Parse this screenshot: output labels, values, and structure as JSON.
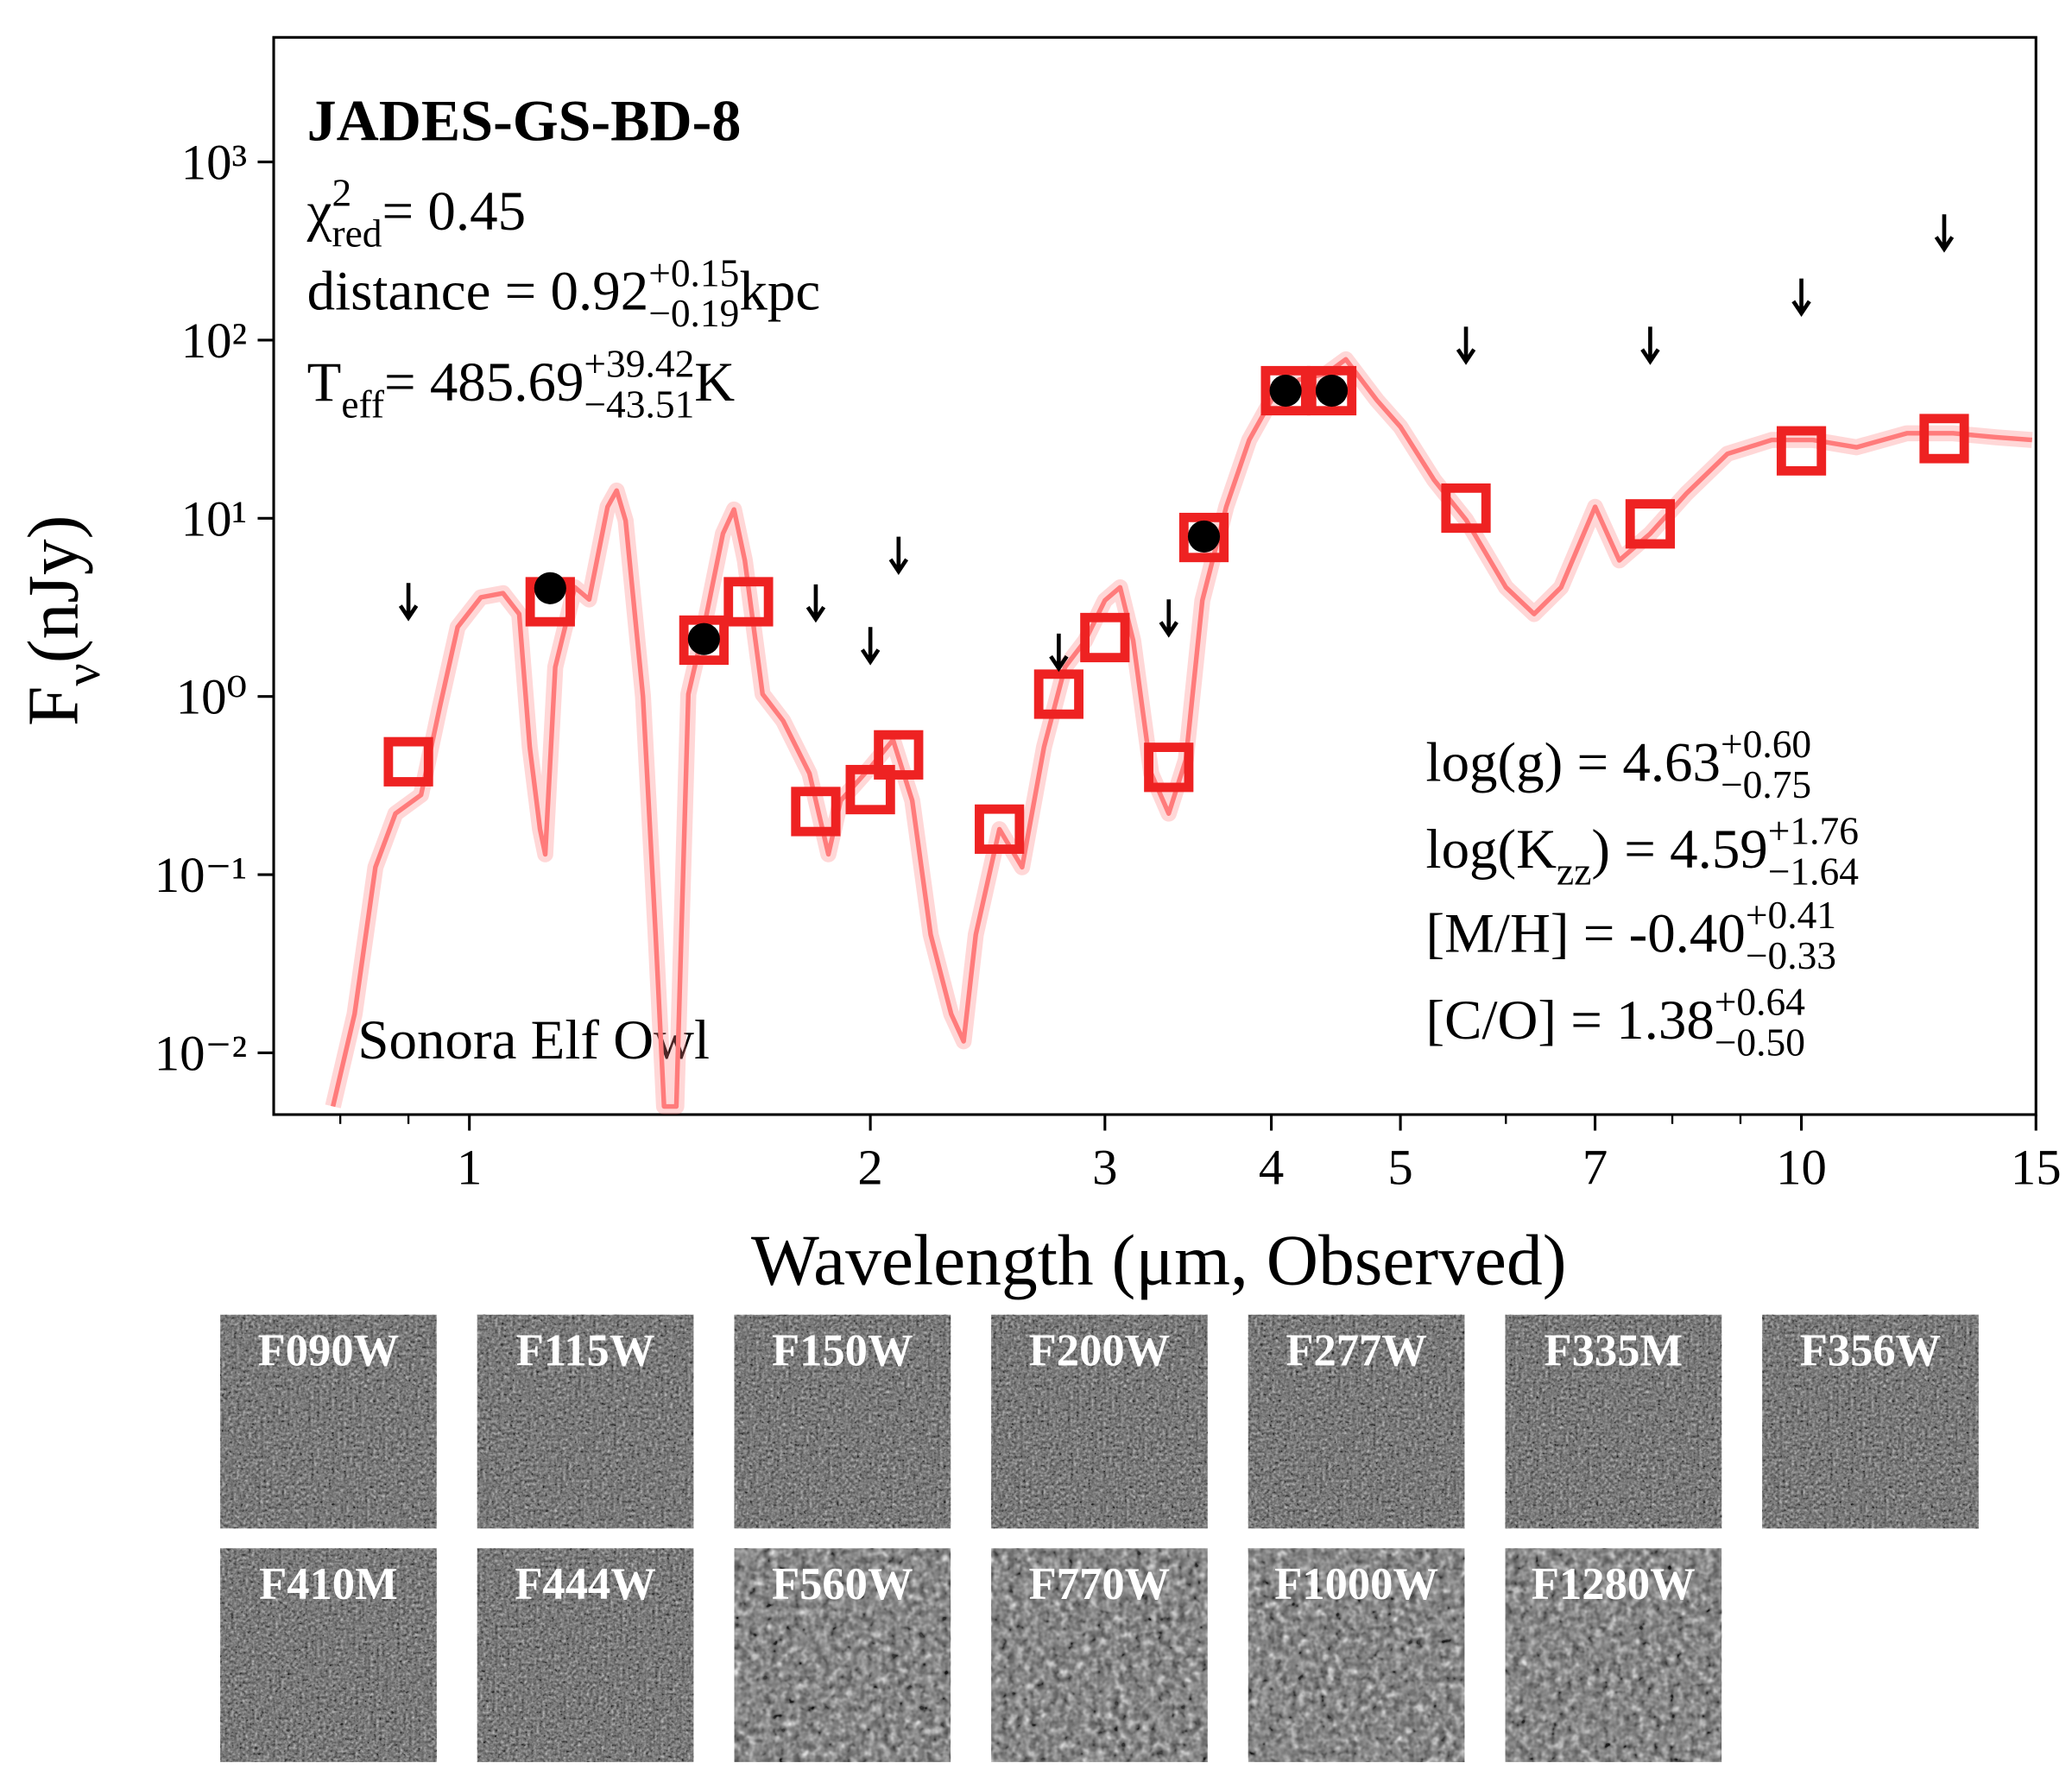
{
  "chart_data": {
    "type": "sed",
    "title": "JADES-GS-BD-8",
    "xlabel": "Wavelength (μm, Observed)",
    "ylabel": [
      {
        "text": "F",
        "pos": "base"
      },
      {
        "text": "ν",
        "pos": "sub"
      },
      {
        "text": " (nJy)",
        "pos": "base"
      }
    ],
    "xscale": "log",
    "yscale": "log",
    "xlim": [
      0.713,
      15
    ],
    "ylim": [
      0.0045,
      5000
    ],
    "xticks": [
      1,
      2,
      3,
      4,
      5,
      7,
      10,
      15
    ],
    "xminorticks": [
      0.8,
      0.9,
      6,
      8,
      9
    ],
    "yticks": [
      {
        "value": 0.01,
        "label": "10⁻²"
      },
      {
        "value": 0.1,
        "label": "10⁻¹"
      },
      {
        "value": 1,
        "label": "10⁰"
      },
      {
        "value": 10,
        "label": "10¹"
      },
      {
        "value": 100,
        "label": "10²"
      },
      {
        "value": 1000,
        "label": "10³"
      }
    ],
    "annotations": [
      {
        "segments": [
          {
            "text": "χ",
            "pos": "base"
          },
          {
            "text": "2",
            "pos": "sup"
          },
          {
            "text": "red",
            "pos": "sub"
          },
          {
            "text": " = 0.45",
            "pos": "base"
          }
        ]
      },
      {
        "segments": [
          {
            "text": "distance = 0.92",
            "pos": "base"
          },
          {
            "text": "+0.15",
            "pos": "sup"
          },
          {
            "text": "−0.19",
            "pos": "sub"
          },
          {
            "text": " kpc",
            "pos": "base"
          }
        ]
      },
      {
        "segments": [
          {
            "text": "T",
            "pos": "base"
          },
          {
            "text": "eff",
            "pos": "sub"
          },
          {
            "text": " = 485.69",
            "pos": "base"
          },
          {
            "text": "+39.42",
            "pos": "sup"
          },
          {
            "text": "−43.51",
            "pos": "sub"
          },
          {
            "text": " K",
            "pos": "base"
          }
        ]
      },
      {
        "segments": [
          {
            "text": "log(g) = 4.63",
            "pos": "base"
          },
          {
            "text": "+0.60",
            "pos": "sup"
          },
          {
            "text": "−0.75",
            "pos": "sub"
          }
        ]
      },
      {
        "segments": [
          {
            "text": "log(K",
            "pos": "base"
          },
          {
            "text": "zz",
            "pos": "sub"
          },
          {
            "text": ") = 4.59",
            "pos": "base"
          },
          {
            "text": "+1.76",
            "pos": "sup"
          },
          {
            "text": "−1.64",
            "pos": "sub"
          }
        ]
      },
      {
        "segments": [
          {
            "text": "[M/H] = -0.40",
            "pos": "base"
          },
          {
            "text": "+0.41",
            "pos": "sup"
          },
          {
            "text": "−0.33",
            "pos": "sub"
          }
        ]
      },
      {
        "segments": [
          {
            "text": "[C/O] = 1.38",
            "pos": "base"
          },
          {
            "text": "+0.64",
            "pos": "sup"
          },
          {
            "text": "−0.50",
            "pos": "sub"
          }
        ]
      },
      {
        "segments": [
          {
            "text": "Sonora Elf Owl",
            "pos": "base"
          }
        ]
      }
    ],
    "model": {
      "color": "#ff7b7b",
      "x": [
        0.79,
        0.82,
        0.85,
        0.88,
        0.92,
        0.95,
        0.98,
        1.02,
        1.06,
        1.09,
        1.11,
        1.13,
        1.14,
        1.16,
        1.2,
        1.23,
        1.27,
        1.29,
        1.31,
        1.35,
        1.38,
        1.4,
        1.43,
        1.46,
        1.5,
        1.55,
        1.58,
        1.61,
        1.66,
        1.72,
        1.8,
        1.86,
        1.9,
        2.0,
        2.08,
        2.15,
        2.22,
        2.3,
        2.35,
        2.4,
        2.5,
        2.6,
        2.7,
        2.8,
        2.9,
        3.0,
        3.08,
        3.15,
        3.25,
        3.35,
        3.45,
        3.55,
        3.7,
        3.85,
        4.0,
        4.2,
        4.4,
        4.55,
        4.8,
        5.0,
        5.3,
        5.6,
        6.0,
        6.3,
        6.6,
        7.0,
        7.3,
        7.7,
        8.2,
        8.8,
        9.5,
        10.2,
        11,
        12,
        13,
        14,
        14.9
      ],
      "values": [
        0.005,
        0.0165,
        0.11,
        0.22,
        0.28,
        0.87,
        2.45,
        3.6,
        3.8,
        2.9,
        0.52,
        0.18,
        0.13,
        1.46,
        4.1,
        3.5,
        11.6,
        14.3,
        9.7,
        1.0,
        0.046,
        0.005,
        0.005,
        1.03,
        2.45,
        8.2,
        11.2,
        5.8,
        1.03,
        0.73,
        0.37,
        0.13,
        0.26,
        0.4,
        0.57,
        0.26,
        0.046,
        0.0165,
        0.0116,
        0.046,
        0.18,
        0.11,
        0.52,
        1.46,
        2.06,
        3.46,
        4.1,
        2.06,
        0.37,
        0.22,
        0.44,
        3.46,
        11.6,
        27.5,
        46,
        60,
        65,
        78,
        46,
        32.6,
        16.4,
        9.8,
        4.1,
        2.9,
        4.1,
        11.6,
        5.8,
        8.2,
        13.8,
        23,
        27.5,
        27.5,
        25,
        30,
        30,
        28.5,
        27.5
      ]
    },
    "model_photometry": {
      "color": "#ee2222",
      "x": [
        0.9,
        1.15,
        1.5,
        1.62,
        1.82,
        2.0,
        2.1,
        2.5,
        2.77,
        3.0,
        3.35,
        3.56,
        4.1,
        4.44,
        5.6,
        7.7,
        10.0,
        12.8
      ],
      "values": [
        0.43,
        3.4,
        2.07,
        3.4,
        0.226,
        0.3,
        0.47,
        0.18,
        1.03,
        2.14,
        0.4,
        7.8,
        52,
        52,
        11.4,
        9.3,
        23.9,
        28
      ]
    },
    "observed": {
      "color": "#000000",
      "x": [
        1.15,
        1.5,
        3.56,
        4.1,
        4.44
      ],
      "values": [
        4.05,
        2.1,
        7.9,
        52,
        52
      ]
    },
    "upper_limits": {
      "color": "#000000",
      "x": [
        0.9,
        1.82,
        2.0,
        2.1,
        2.77,
        3.35,
        5.6,
        7.7,
        10.0,
        12.8
      ],
      "values": [
        3.46,
        3.4,
        1.96,
        6.3,
        1.8,
        2.8,
        95,
        95,
        177,
        406
      ]
    },
    "stamps": [
      "F090W",
      "F115W",
      "F150W",
      "F200W",
      "F277W",
      "F335M",
      "F356W",
      "F410M",
      "F444W",
      "F560W",
      "F770W",
      "F1000W",
      "F1280W"
    ]
  }
}
